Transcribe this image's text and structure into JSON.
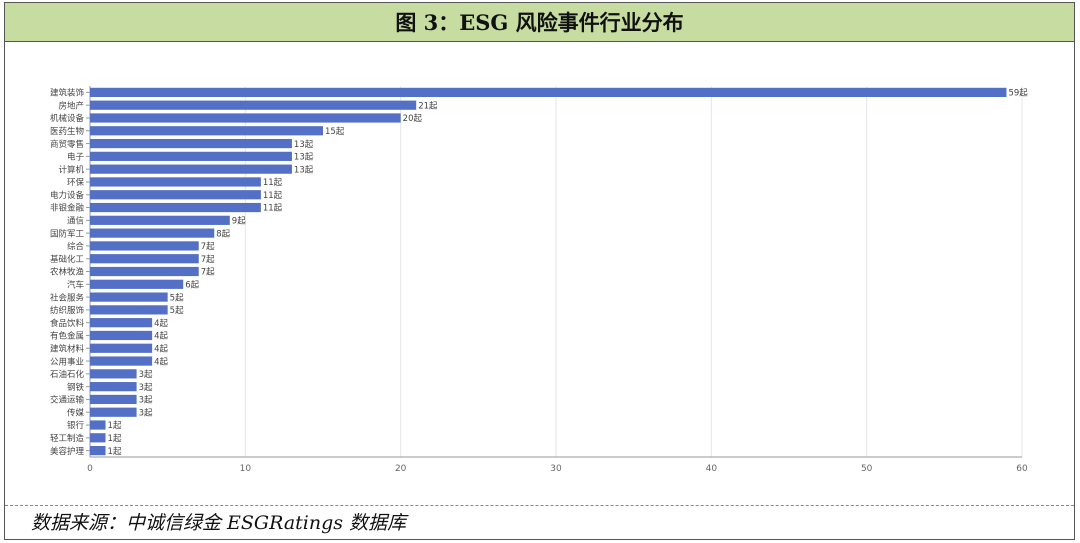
{
  "figure_title": "图 3：ESG 风险事件行业分布",
  "source_note": "数据来源：中诚信绿金 ESGRatings 数据库",
  "colors": {
    "bar": "#5470c6",
    "title_bg": "#c7dca1",
    "grid": "#e6e6e6"
  },
  "chart_data": {
    "type": "bar",
    "orientation": "horizontal",
    "categories": [
      "建筑装饰",
      "房地产",
      "机械设备",
      "医药生物",
      "商贸零售",
      "电子",
      "计算机",
      "环保",
      "电力设备",
      "非银金融",
      "通信",
      "国防军工",
      "综合",
      "基础化工",
      "农林牧渔",
      "汽车",
      "社会服务",
      "纺织服饰",
      "食品饮料",
      "有色金属",
      "建筑材料",
      "公用事业",
      "石油石化",
      "钢铁",
      "交通运输",
      "传媒",
      "银行",
      "轻工制造",
      "美容护理"
    ],
    "values": [
      59,
      21,
      20,
      15,
      13,
      13,
      13,
      11,
      11,
      11,
      9,
      8,
      7,
      7,
      7,
      6,
      5,
      5,
      4,
      4,
      4,
      4,
      3,
      3,
      3,
      3,
      1,
      1,
      1
    ],
    "value_labels": [
      "59起",
      "21起",
      "20起",
      "15起",
      "13起",
      "13起",
      "13起",
      "11起",
      "11起",
      "11起",
      "9起",
      "8起",
      "7起",
      "7起",
      "7起",
      "6起",
      "5起",
      "5起",
      "4起",
      "4起",
      "4起",
      "4起",
      "3起",
      "3起",
      "3起",
      "3起",
      "1起",
      "1起",
      "1起"
    ],
    "xlim": [
      0,
      60
    ],
    "xticks": [
      "0",
      "10",
      "20",
      "30",
      "40",
      "50",
      "60"
    ],
    "grid": true
  }
}
